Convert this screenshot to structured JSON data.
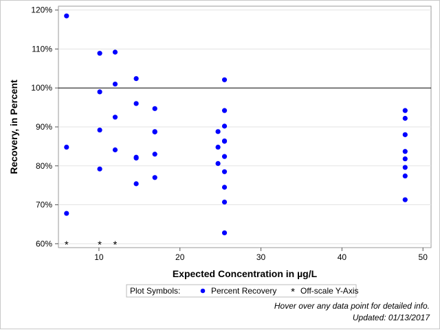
{
  "chart_data": {
    "type": "scatter",
    "title": "",
    "xlabel": "Expected Concentration in µg/L",
    "ylabel": "Recovery, in Percent",
    "xlim": [
      5,
      51
    ],
    "ylim": [
      59,
      121
    ],
    "xticks": [
      10,
      20,
      30,
      40,
      50
    ],
    "yticks": [
      60,
      70,
      80,
      90,
      100,
      110,
      120
    ],
    "ytick_labels": [
      "60%",
      "70%",
      "80%",
      "90%",
      "100%",
      "110%",
      "120%"
    ],
    "reference_line_y": 100,
    "grid": "horizontal",
    "series": [
      {
        "name": "Percent Recovery",
        "color": "#0000ff",
        "marker": "circle",
        "points": [
          [
            6,
            118.5
          ],
          [
            6,
            84.8
          ],
          [
            6,
            67.8
          ],
          [
            10.1,
            108.9
          ],
          [
            10.1,
            99
          ],
          [
            10.1,
            89.2
          ],
          [
            10.1,
            79.2
          ],
          [
            12,
            109.2
          ],
          [
            12,
            101
          ],
          [
            12,
            92.5
          ],
          [
            12,
            84.1
          ],
          [
            14.6,
            102.4
          ],
          [
            14.6,
            96
          ],
          [
            14.6,
            82.2
          ],
          [
            14.6,
            82
          ],
          [
            14.6,
            75.4
          ],
          [
            16.9,
            94.7
          ],
          [
            16.9,
            88.8
          ],
          [
            16.9,
            88.7
          ],
          [
            16.9,
            83
          ],
          [
            16.9,
            77
          ],
          [
            24.7,
            88.8
          ],
          [
            24.7,
            84.8
          ],
          [
            24.7,
            80.6
          ],
          [
            25.5,
            102.1
          ],
          [
            25.5,
            94.2
          ],
          [
            25.5,
            90.2
          ],
          [
            25.5,
            86.4
          ],
          [
            25.5,
            86.3
          ],
          [
            25.5,
            82.4
          ],
          [
            25.5,
            78.5
          ],
          [
            25.5,
            74.5
          ],
          [
            25.5,
            70.7
          ],
          [
            25.5,
            62.8
          ],
          [
            47.8,
            94.2
          ],
          [
            47.8,
            92.2
          ],
          [
            47.8,
            88
          ],
          [
            47.8,
            83.7
          ],
          [
            47.8,
            81.8
          ],
          [
            47.8,
            79.6
          ],
          [
            47.8,
            77.4
          ],
          [
            47.8,
            71.3
          ]
        ]
      },
      {
        "name": "Off-scale Y-Axis",
        "color": "#ff0000",
        "marker": "asterisk",
        "points": [
          [
            6,
            60
          ],
          [
            10.1,
            60
          ],
          [
            12,
            60
          ]
        ]
      }
    ],
    "legend": {
      "title": "Plot Symbols:",
      "items": [
        "Percent Recovery",
        "Off-scale Y-Axis"
      ],
      "placement": "bottom"
    }
  },
  "footer": {
    "hover_note": "Hover over any data point for detailed info.",
    "updated": "Updated: 01/13/2017"
  }
}
